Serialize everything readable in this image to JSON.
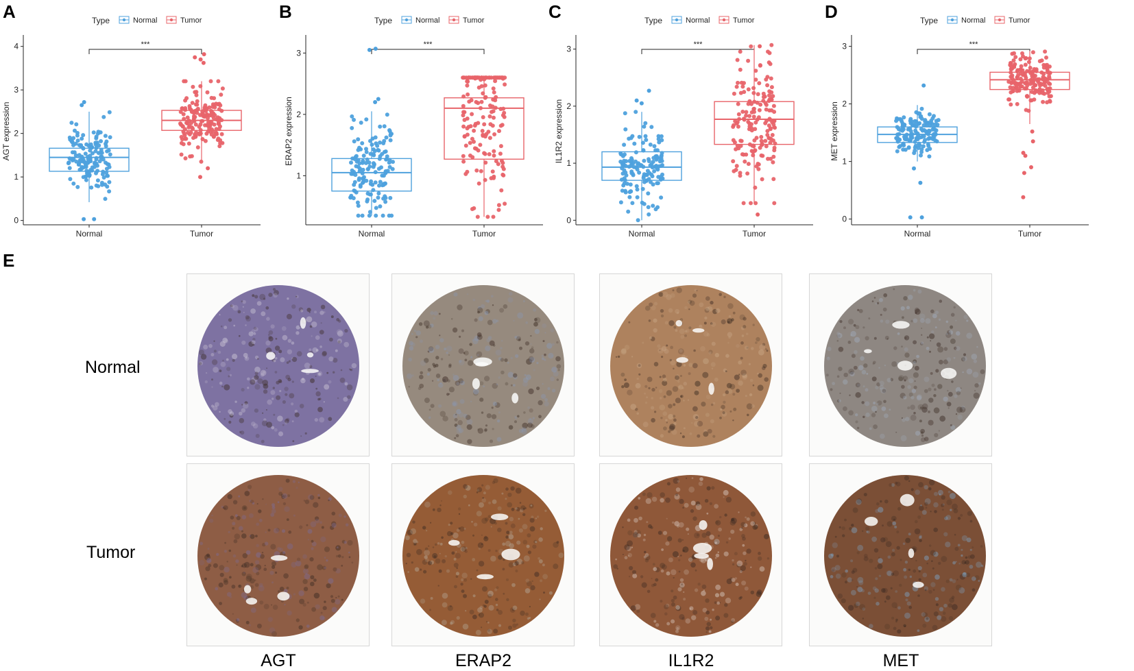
{
  "figure": {
    "panel_letters": [
      "A",
      "B",
      "C",
      "D",
      "E"
    ],
    "legend": {
      "title": "Type",
      "items": [
        "Normal",
        "Tumor"
      ]
    },
    "colors": {
      "normal": "#4EA1DD",
      "tumor": "#E8646A",
      "axis": "#222222"
    }
  },
  "chart_data": [
    {
      "type": "box",
      "panel": "A",
      "ylabel": "AGT expression",
      "categories": [
        "Normal",
        "Tumor"
      ],
      "ylim": [
        -0.1,
        4.2
      ],
      "yticks": [
        0,
        1,
        2,
        3,
        4
      ],
      "significance": "***",
      "series": [
        {
          "name": "Normal",
          "min": 0.42,
          "q1": 1.13,
          "median": 1.45,
          "q3": 1.66,
          "max": 2.5,
          "n": 150,
          "outliers": [
            0.03,
            0.03,
            2.72,
            2.65
          ]
        },
        {
          "name": "Tumor",
          "min": 1.35,
          "q1": 2.07,
          "median": 2.3,
          "q3": 2.53,
          "max": 3.2,
          "n": 170,
          "outliers": [
            1.0,
            1.2,
            3.62,
            3.7,
            3.82,
            3.75
          ]
        }
      ]
    },
    {
      "type": "box",
      "panel": "B",
      "ylabel": "ERAP2 expression",
      "categories": [
        "Normal",
        "Tumor"
      ],
      "ylim": [
        0.2,
        3.25
      ],
      "yticks": [
        1,
        2,
        3
      ],
      "significance": "***",
      "series": [
        {
          "name": "Normal",
          "min": 0.35,
          "q1": 0.75,
          "median": 1.05,
          "q3": 1.28,
          "max": 2.05,
          "n": 150,
          "outliers": [
            2.25,
            2.2,
            3.05,
            3.07
          ]
        },
        {
          "name": "Tumor",
          "min": 0.33,
          "q1": 1.27,
          "median": 2.1,
          "q3": 2.27,
          "max": 2.6,
          "n": 170,
          "outliers": []
        }
      ]
    },
    {
      "type": "box",
      "panel": "C",
      "ylabel": "IL1R2 expression",
      "categories": [
        "Normal",
        "Tumor"
      ],
      "ylim": [
        -0.08,
        3.2
      ],
      "yticks": [
        0,
        1,
        2,
        3
      ],
      "significance": "***",
      "series": [
        {
          "name": "Normal",
          "min": 0.0,
          "q1": 0.7,
          "median": 0.93,
          "q3": 1.2,
          "max": 1.9,
          "n": 150,
          "outliers": [
            2.1,
            2.27,
            2.05
          ]
        },
        {
          "name": "Tumor",
          "min": 0.3,
          "q1": 1.33,
          "median": 1.77,
          "q3": 2.08,
          "max": 3.07,
          "n": 170,
          "outliers": [
            0.1,
            3.05
          ]
        }
      ]
    },
    {
      "type": "box",
      "panel": "D",
      "ylabel": "MET expression",
      "categories": [
        "Normal",
        "Tumor"
      ],
      "ylim": [
        -0.1,
        3.15
      ],
      "yticks": [
        0,
        1,
        2,
        3
      ],
      "significance": "***",
      "series": [
        {
          "name": "Normal",
          "min": 1.0,
          "q1": 1.33,
          "median": 1.47,
          "q3": 1.6,
          "max": 1.98,
          "n": 150,
          "outliers": [
            0.03,
            0.03,
            0.63,
            0.88,
            2.32
          ]
        },
        {
          "name": "Tumor",
          "min": 1.65,
          "q1": 2.25,
          "median": 2.42,
          "q3": 2.55,
          "max": 2.92,
          "n": 170,
          "outliers": [
            0.38,
            0.8,
            0.9,
            1.1,
            1.15,
            1.35,
            1.52
          ]
        }
      ]
    }
  ],
  "ihc": {
    "rows": [
      "Normal",
      "Tumor"
    ],
    "genes": [
      "AGT",
      "ERAP2",
      "IL1R2",
      "MET"
    ],
    "images": [
      {
        "gene": "AGT",
        "row": "Normal",
        "base": "#7e72a2",
        "accent": "#cfc9d8"
      },
      {
        "gene": "ERAP2",
        "row": "Normal",
        "base": "#968a7e",
        "accent": "#8a98b4"
      },
      {
        "gene": "IL1R2",
        "row": "Normal",
        "base": "#ae825e",
        "accent": "#c9a888"
      },
      {
        "gene": "MET",
        "row": "Normal",
        "base": "#8e8782",
        "accent": "#a2aebf"
      },
      {
        "gene": "AGT",
        "row": "Tumor",
        "base": "#8e5d45",
        "accent": "#7b6c98"
      },
      {
        "gene": "ERAP2",
        "row": "Tumor",
        "base": "#955c36",
        "accent": "#b6ad9d"
      },
      {
        "gene": "IL1R2",
        "row": "Tumor",
        "base": "#8f5839",
        "accent": "#dcd0c8"
      },
      {
        "gene": "MET",
        "row": "Tumor",
        "base": "#7b4f36",
        "accent": "#7ea4c4"
      }
    ]
  }
}
